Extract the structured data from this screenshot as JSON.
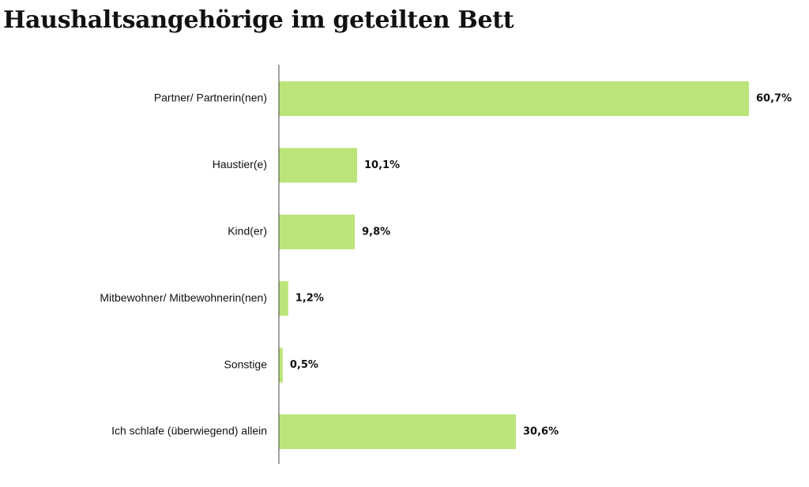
{
  "chart_data": {
    "type": "bar",
    "orientation": "horizontal",
    "title": "Haushaltsangehörige im geteilten Bett",
    "categories": [
      "Partner/ Partnerin(nen)",
      "Haustier(e)",
      "Kind(er)",
      "Mitbewohner/ Mitbewohnerin(nen)",
      "Sonstige",
      "Ich schlafe (überwiegend) allein"
    ],
    "values": [
      60.7,
      10.1,
      9.8,
      1.2,
      0.5,
      30.6
    ],
    "value_labels": [
      "60,7%",
      "10,1%",
      "9,8%",
      "1,2%",
      "0,5%",
      "30,6%"
    ],
    "unit": "%",
    "xlim": [
      0,
      65
    ],
    "xlabel": "",
    "ylabel": "",
    "grid": false,
    "legend": "none",
    "bar_color": "#bbe57a",
    "axis_color": "#444444"
  }
}
